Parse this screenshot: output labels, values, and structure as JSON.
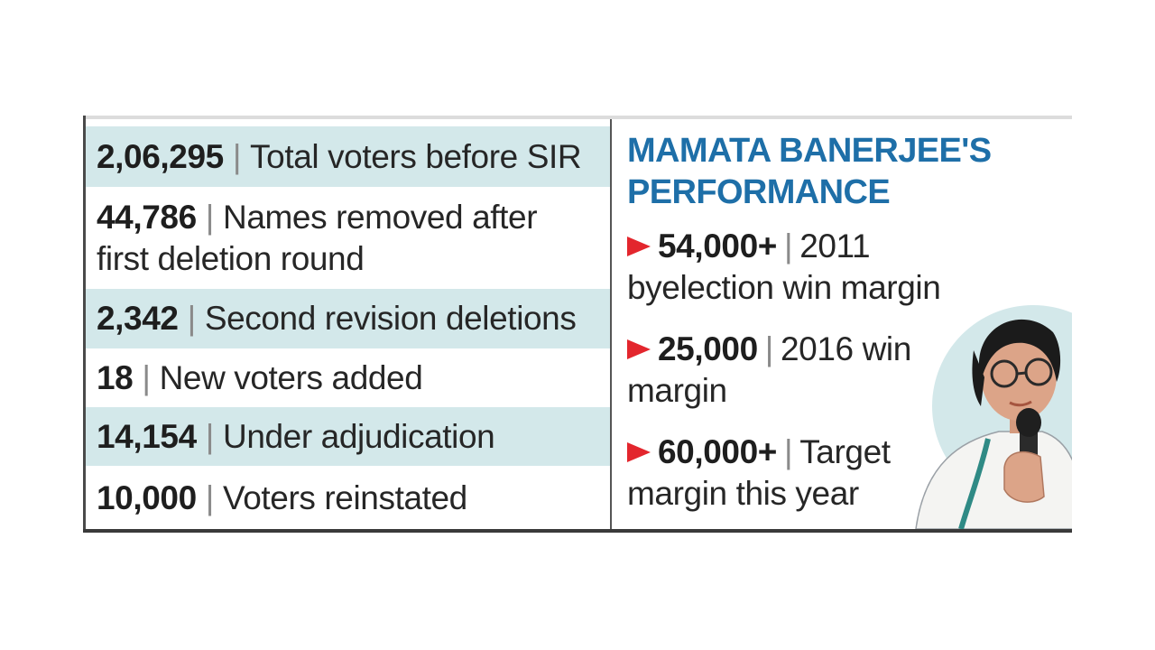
{
  "stats": [
    {
      "number": "2,06,295",
      "label": "Total voters before SIR"
    },
    {
      "number": "44,786",
      "label": "Names removed after",
      "label2": "first deletion round"
    },
    {
      "number": "2,342",
      "label": "Second revision deletions"
    },
    {
      "number": "18",
      "label": "New voters added"
    },
    {
      "number": "14,154",
      "label": "Under adjudication"
    },
    {
      "number": "10,000",
      "label": "Voters reinstated"
    }
  ],
  "separator": "|",
  "performance": {
    "heading_line1": "MAMATA BANERJEE'S",
    "heading_line2": "PERFORMANCE",
    "facts": [
      {
        "number": "54,000+",
        "text1": "2011",
        "text2": "byelection win margin"
      },
      {
        "number": "25,000",
        "text1": "2016 win",
        "text2": "margin"
      },
      {
        "number": "60,000+",
        "text1": "Target",
        "text2": "margin this year"
      }
    ]
  },
  "colors": {
    "row_shade": "#d3e8ea",
    "heading_blue": "#1e6fa8",
    "arrow_red": "#e3262d"
  },
  "icons": {
    "arrow": "red-triangle-arrow-icon",
    "portrait": "speaker-portrait-illustration"
  }
}
